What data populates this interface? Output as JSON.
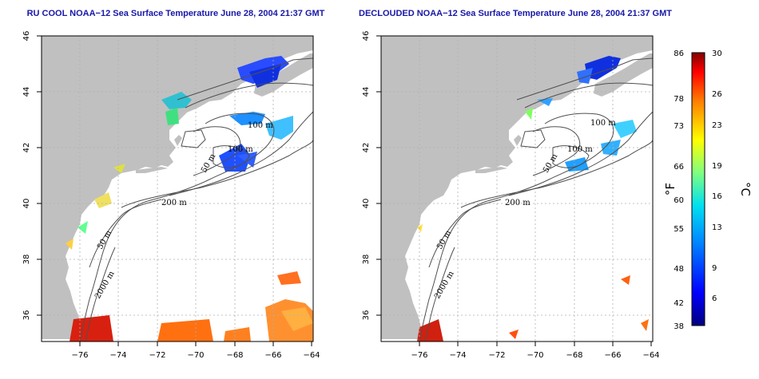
{
  "titles": {
    "left": "RU COOL NOAA−12 Sea Surface Temperature June 28, 2004 21:37 GMT",
    "right": "DECLOUDED NOAA−12 Sea Surface Temperature June 28, 2004 21:37 GMT"
  },
  "axes": {
    "x_ticks": [
      "−76",
      "−74",
      "−72",
      "−70",
      "−68",
      "−66",
      "−64"
    ],
    "y_ticks": [
      "46",
      "44",
      "42",
      "40",
      "38",
      "36"
    ]
  },
  "contour_labels": {
    "left": [
      "100 m",
      "100 m",
      "50 m",
      "200 m",
      "50 m",
      "2000 m"
    ],
    "right": [
      "100 m",
      "100 m",
      "50 m",
      "200 m",
      "50 m",
      "2000 m"
    ]
  },
  "colorbar": {
    "fahrenheit_unit": "°F",
    "celsius_unit": "°C",
    "fahrenheit_ticks": [
      "86",
      "78",
      "73",
      "66",
      "60",
      "55",
      "48",
      "42",
      "38"
    ],
    "celsius_ticks": [
      "30",
      "26",
      "23",
      "19",
      "16",
      "13",
      "9",
      "6"
    ]
  },
  "colors": {
    "land": "#c0c0c0",
    "grid": "#b0b0b0",
    "title": "#1818a8"
  }
}
